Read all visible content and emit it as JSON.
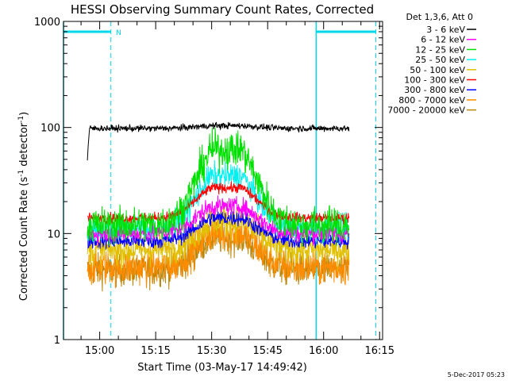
{
  "chart_data": {
    "type": "line",
    "title": "HESSI Observing Summary Count Rates, Corrected",
    "xlabel": "Start Time (03-May-17 14:49:42)",
    "ylabel": "Corrected Count Rate (s",
    "ylabel_sup1": "-1",
    "ylabel_mid": " detector",
    "ylabel_sup2": "-1",
    "ylabel_end": ")",
    "y_scale": "log",
    "ylim": [
      1,
      1000
    ],
    "xlim_min": [
      -9.7,
      75.8
    ],
    "x_ticks": [
      {
        "t": 0,
        "label": "15:00"
      },
      {
        "t": 15,
        "label": "15:15"
      },
      {
        "t": 30,
        "label": "15:30"
      },
      {
        "t": 45,
        "label": "15:45"
      },
      {
        "t": 60,
        "label": "16:00"
      },
      {
        "t": 75,
        "label": "16:15"
      }
    ],
    "y_ticks": [
      {
        "v": 1,
        "label": "1"
      },
      {
        "v": 10,
        "label": "10"
      },
      {
        "v": 100,
        "label": "100"
      },
      {
        "v": 1000,
        "label": "1000"
      }
    ],
    "legend_header": "Det 1,3,6, Att 0",
    "legend_placement": "right",
    "timestamp": "5-Dec-2017 05:23",
    "markers": {
      "solid_lines_min": [
        -9.7,
        58
      ],
      "dashed_lines_min": [
        3,
        74
      ],
      "bars_min": [
        [
          -9.7,
          3
        ],
        [
          58,
          74
        ]
      ],
      "bar_value": 800,
      "label": "N",
      "label_min": 3.5,
      "color": "#00d8e8"
    },
    "data_span_min": [
      -3.3,
      66.8
    ],
    "series": [
      {
        "name": "3 - 6 keV",
        "color": "#000000",
        "plateau": 98,
        "peak": 104,
        "noise": 0.05
      },
      {
        "name": "6 - 12 keV",
        "color": "#ff00ff",
        "plateau": 10,
        "peak": 18,
        "noise": 0.14
      },
      {
        "name": "12 - 25 keV",
        "color": "#00e000",
        "plateau": 12,
        "peak": 62,
        "noise": 0.28
      },
      {
        "name": "25 - 50 keV",
        "color": "#00f0f0",
        "plateau": 11,
        "peak": 35,
        "noise": 0.2
      },
      {
        "name": "50 - 100 keV",
        "color": "#e0c000",
        "plateau": 7,
        "peak": 13,
        "noise": 0.25
      },
      {
        "name": "100 - 300 keV",
        "color": "#ff0000",
        "plateau": 14,
        "peak": 27,
        "noise": 0.08
      },
      {
        "name": "300 - 800 keV",
        "color": "#0000ff",
        "plateau": 8.5,
        "peak": 14,
        "noise": 0.12
      },
      {
        "name": "800 - 7000 keV",
        "color": "#ff8c00",
        "plateau": 4.8,
        "peak": 10,
        "noise": 0.28
      },
      {
        "name": "7000 - 20000 keV",
        "color": "#b8860b",
        "plateau": 4.5,
        "peak": 9,
        "noise": 0.25
      }
    ]
  }
}
